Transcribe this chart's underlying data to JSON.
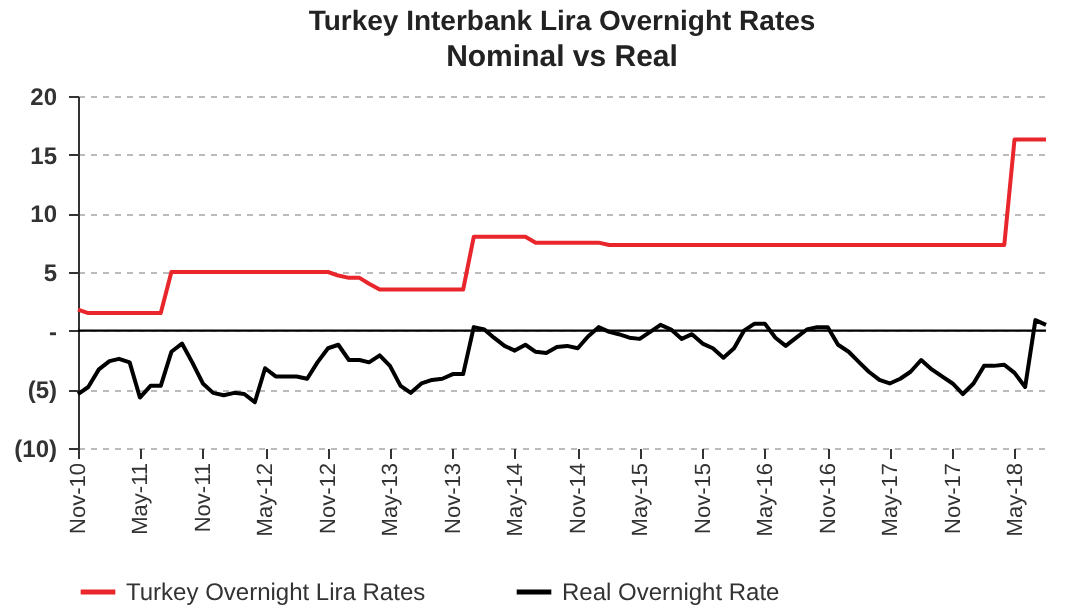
{
  "chart_data": {
    "type": "line",
    "title": "Turkey Interbank Lira Overnight Rates",
    "subtitle": "Nominal vs Real",
    "x": [
      "2010-11",
      "2010-12",
      "2011-01",
      "2011-02",
      "2011-03",
      "2011-04",
      "2011-05",
      "2011-06",
      "2011-07",
      "2011-08",
      "2011-09",
      "2011-10",
      "2011-11",
      "2011-12",
      "2012-01",
      "2012-02",
      "2012-03",
      "2012-04",
      "2012-05",
      "2012-06",
      "2012-07",
      "2012-08",
      "2012-09",
      "2012-10",
      "2012-11",
      "2012-12",
      "2013-01",
      "2013-02",
      "2013-03",
      "2013-04",
      "2013-05",
      "2013-06",
      "2013-07",
      "2013-08",
      "2013-09",
      "2013-10",
      "2013-11",
      "2013-12",
      "2014-01",
      "2014-02",
      "2014-03",
      "2014-04",
      "2014-05",
      "2014-06",
      "2014-07",
      "2014-08",
      "2014-09",
      "2014-10",
      "2014-11",
      "2014-12",
      "2015-01",
      "2015-02",
      "2015-03",
      "2015-04",
      "2015-05",
      "2015-06",
      "2015-07",
      "2015-08",
      "2015-09",
      "2015-10",
      "2015-11",
      "2015-12",
      "2016-01",
      "2016-02",
      "2016-03",
      "2016-04",
      "2016-05",
      "2016-06",
      "2016-07",
      "2016-08",
      "2016-09",
      "2016-10",
      "2016-11",
      "2016-12",
      "2017-01",
      "2017-02",
      "2017-03",
      "2017-04",
      "2017-05",
      "2017-06",
      "2017-07",
      "2017-08",
      "2017-09",
      "2017-10",
      "2017-11",
      "2017-12",
      "2018-01",
      "2018-02",
      "2018-03",
      "2018-04",
      "2018-05",
      "2018-06",
      "2018-07",
      "2018-08"
    ],
    "series": [
      {
        "name": "Turkey Overnight Lira Rates",
        "color": "#e8262c",
        "values": [
          1.8,
          1.5,
          1.5,
          1.5,
          1.5,
          1.5,
          1.5,
          1.5,
          1.5,
          5,
          5,
          5,
          5,
          5,
          5,
          5,
          5,
          5,
          5,
          5,
          5,
          5,
          5,
          5,
          5,
          4.7,
          4.5,
          4.5,
          4,
          3.5,
          3.5,
          3.5,
          3.5,
          3.5,
          3.5,
          3.5,
          3.5,
          3.5,
          8,
          8,
          8,
          8,
          8,
          8,
          7.5,
          7.5,
          7.5,
          7.5,
          7.5,
          7.5,
          7.5,
          7.3,
          7.3,
          7.3,
          7.3,
          7.3,
          7.3,
          7.3,
          7.3,
          7.3,
          7.3,
          7.3,
          7.3,
          7.3,
          7.3,
          7.3,
          7.3,
          7.3,
          7.3,
          7.3,
          7.3,
          7.3,
          7.3,
          7.3,
          7.3,
          7.3,
          7.3,
          7.3,
          7.3,
          7.3,
          7.3,
          7.3,
          7.3,
          7.3,
          7.3,
          7.3,
          7.3,
          7.3,
          7.3,
          7.3,
          16.3,
          16.3,
          16.3,
          16.3
        ]
      },
      {
        "name": "Real Overnight Rate",
        "color": "#000000",
        "values": [
          -5.4,
          -4.8,
          -3.3,
          -2.6,
          -2.4,
          -2.7,
          -5.7,
          -4.7,
          -4.7,
          -1.8,
          -1.1,
          -2.7,
          -4.5,
          -5.3,
          -5.5,
          -5.3,
          -5.4,
          -6.1,
          -3.2,
          -3.9,
          -3.9,
          -3.9,
          -4.1,
          -2.7,
          -1.5,
          -1.2,
          -2.5,
          -2.5,
          -2.7,
          -2.1,
          -3,
          -4.7,
          -5.3,
          -4.5,
          -4.2,
          -4.1,
          -3.7,
          -3.7,
          0.3,
          0.1,
          -0.6,
          -1.3,
          -1.7,
          -1.2,
          -1.8,
          -1.9,
          -1.4,
          -1.3,
          -1.5,
          -0.5,
          0.3,
          -0.1,
          -0.3,
          -0.6,
          -0.7,
          -0.1,
          0.5,
          0.1,
          -0.7,
          -0.3,
          -1.1,
          -1.5,
          -2.3,
          -1.5,
          0,
          0.6,
          0.6,
          -0.6,
          -1.3,
          -0.6,
          0.1,
          0.3,
          0.3,
          -1.2,
          -1.8,
          -2.7,
          -3.5,
          -4.2,
          -4.5,
          -4.1,
          -3.5,
          -2.5,
          -3.3,
          -3.9,
          -4.5,
          -5.4,
          -4.5,
          -3,
          -3,
          -2.9,
          -3.6,
          -4.8,
          0.9,
          0.5
        ]
      }
    ],
    "ylim": [
      -10,
      20
    ],
    "yticks": [
      {
        "value": -10,
        "label": "(10)"
      },
      {
        "value": -5,
        "label": "(5)"
      },
      {
        "value": 0,
        "label": "-"
      },
      5,
      10,
      15,
      20
    ],
    "xticks": [
      {
        "value": "2010-11",
        "label": "Nov-10"
      },
      {
        "value": "2011-05",
        "label": "May-11"
      },
      {
        "value": "2011-11",
        "label": "Nov-11"
      },
      {
        "value": "2012-05",
        "label": "May-12"
      },
      {
        "value": "2012-11",
        "label": "Nov-12"
      },
      {
        "value": "2013-05",
        "label": "May-13"
      },
      {
        "value": "2013-11",
        "label": "Nov-13"
      },
      {
        "value": "2014-05",
        "label": "May-14"
      },
      {
        "value": "2014-11",
        "label": "Nov-14"
      },
      {
        "value": "2015-05",
        "label": "May-15"
      },
      {
        "value": "2015-11",
        "label": "Nov-15"
      },
      {
        "value": "2016-05",
        "label": "May-16"
      },
      {
        "value": "2016-11",
        "label": "Nov-16"
      },
      {
        "value": "2017-05",
        "label": "May-17"
      },
      {
        "value": "2017-11",
        "label": "Nov-17"
      },
      {
        "value": "2018-05",
        "label": "May-18"
      }
    ],
    "xlim": [
      "2010-11",
      "2018-08"
    ],
    "ref_lines": [
      {
        "axis": "y",
        "value": 0,
        "color": "#000000"
      }
    ],
    "grid": "y",
    "legend": "bottom",
    "line_style": "solid"
  }
}
